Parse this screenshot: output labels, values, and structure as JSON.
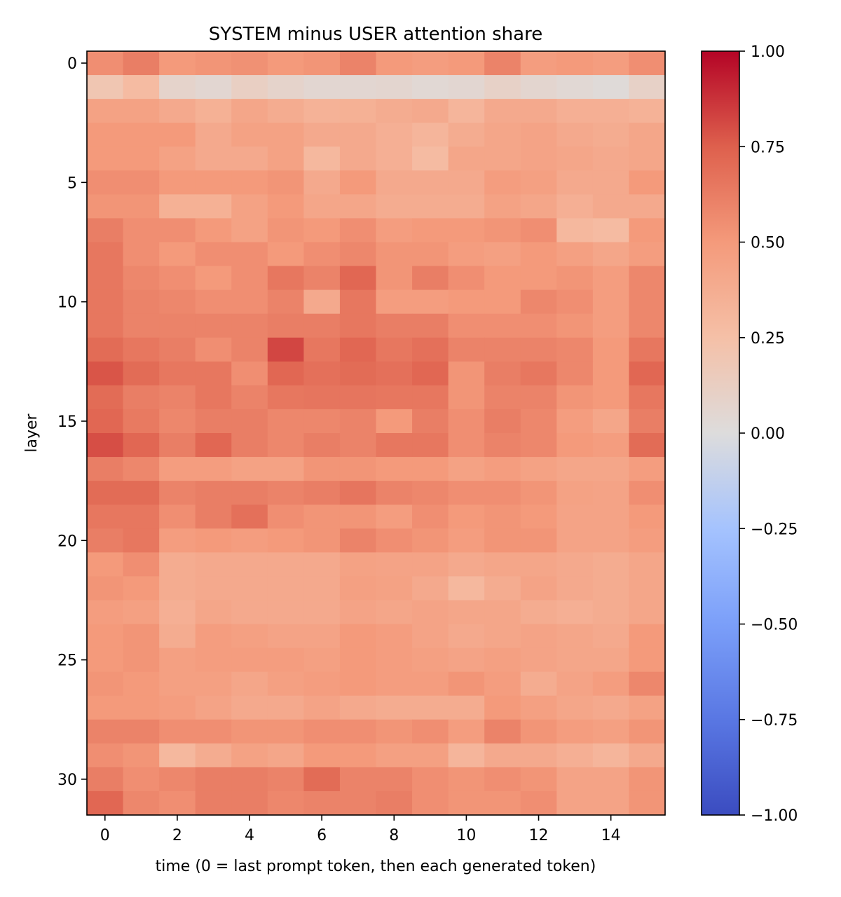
{
  "chart_data": {
    "type": "heatmap",
    "title": "SYSTEM minus USER attention share",
    "xlabel": "time (0 = last prompt token, then each generated token)",
    "ylabel": "layer",
    "x_ticks": [
      0,
      2,
      4,
      6,
      8,
      10,
      12,
      14
    ],
    "y_ticks": [
      0,
      5,
      10,
      15,
      20,
      25,
      30
    ],
    "x_tick_labels": [
      "0",
      "2",
      "4",
      "6",
      "8",
      "10",
      "12",
      "14"
    ],
    "y_tick_labels": [
      "0",
      "5",
      "10",
      "15",
      "20",
      "25",
      "30"
    ],
    "colorbar": {
      "min": -1.0,
      "max": 1.0,
      "ticks": [
        1.0,
        0.75,
        0.5,
        0.25,
        0.0,
        -0.25,
        -0.5,
        -0.75,
        -1.0
      ],
      "tick_labels": [
        "1.00",
        "0.75",
        "0.50",
        "0.25",
        "0.00",
        "−0.25",
        "−0.50",
        "−0.75",
        "−1.00"
      ],
      "colormap": "coolwarm"
    },
    "n_cols": 16,
    "n_rows": 32,
    "values": [
      [
        0.55,
        0.62,
        0.5,
        0.52,
        0.54,
        0.5,
        0.52,
        0.6,
        0.5,
        0.48,
        0.5,
        0.6,
        0.48,
        0.5,
        0.48,
        0.55
      ],
      [
        0.2,
        0.28,
        0.08,
        0.05,
        0.12,
        0.08,
        0.05,
        0.05,
        0.06,
        0.04,
        0.05,
        0.1,
        0.06,
        0.04,
        0.02,
        0.1
      ],
      [
        0.45,
        0.45,
        0.4,
        0.35,
        0.42,
        0.38,
        0.34,
        0.35,
        0.38,
        0.4,
        0.32,
        0.4,
        0.4,
        0.36,
        0.36,
        0.34
      ],
      [
        0.5,
        0.5,
        0.5,
        0.4,
        0.45,
        0.45,
        0.4,
        0.4,
        0.36,
        0.32,
        0.38,
        0.42,
        0.44,
        0.4,
        0.38,
        0.42
      ],
      [
        0.5,
        0.5,
        0.45,
        0.4,
        0.4,
        0.45,
        0.3,
        0.4,
        0.36,
        0.28,
        0.42,
        0.42,
        0.44,
        0.42,
        0.4,
        0.42
      ],
      [
        0.55,
        0.55,
        0.5,
        0.5,
        0.5,
        0.52,
        0.4,
        0.5,
        0.4,
        0.4,
        0.4,
        0.48,
        0.46,
        0.4,
        0.4,
        0.5
      ],
      [
        0.52,
        0.52,
        0.35,
        0.35,
        0.45,
        0.5,
        0.42,
        0.42,
        0.38,
        0.38,
        0.38,
        0.45,
        0.42,
        0.36,
        0.4,
        0.4
      ],
      [
        0.62,
        0.55,
        0.55,
        0.5,
        0.45,
        0.52,
        0.5,
        0.55,
        0.48,
        0.5,
        0.5,
        0.52,
        0.55,
        0.3,
        0.28,
        0.5
      ],
      [
        0.65,
        0.55,
        0.5,
        0.55,
        0.55,
        0.5,
        0.55,
        0.58,
        0.52,
        0.52,
        0.48,
        0.46,
        0.5,
        0.46,
        0.42,
        0.48
      ],
      [
        0.65,
        0.58,
        0.55,
        0.5,
        0.55,
        0.65,
        0.6,
        0.72,
        0.52,
        0.62,
        0.55,
        0.5,
        0.5,
        0.52,
        0.48,
        0.58
      ],
      [
        0.65,
        0.6,
        0.58,
        0.55,
        0.55,
        0.6,
        0.4,
        0.65,
        0.48,
        0.48,
        0.5,
        0.5,
        0.58,
        0.55,
        0.48,
        0.58
      ],
      [
        0.65,
        0.6,
        0.6,
        0.6,
        0.6,
        0.62,
        0.62,
        0.65,
        0.62,
        0.62,
        0.55,
        0.55,
        0.55,
        0.52,
        0.48,
        0.58
      ],
      [
        0.7,
        0.65,
        0.62,
        0.55,
        0.6,
        0.82,
        0.65,
        0.72,
        0.65,
        0.68,
        0.6,
        0.6,
        0.6,
        0.58,
        0.5,
        0.65
      ],
      [
        0.78,
        0.7,
        0.65,
        0.65,
        0.55,
        0.72,
        0.68,
        0.7,
        0.68,
        0.72,
        0.52,
        0.62,
        0.65,
        0.58,
        0.5,
        0.72
      ],
      [
        0.7,
        0.62,
        0.6,
        0.65,
        0.6,
        0.65,
        0.66,
        0.66,
        0.65,
        0.65,
        0.52,
        0.6,
        0.6,
        0.52,
        0.5,
        0.65
      ],
      [
        0.72,
        0.64,
        0.58,
        0.62,
        0.62,
        0.58,
        0.58,
        0.6,
        0.5,
        0.62,
        0.55,
        0.62,
        0.58,
        0.48,
        0.42,
        0.62
      ],
      [
        0.8,
        0.72,
        0.62,
        0.72,
        0.62,
        0.58,
        0.62,
        0.6,
        0.65,
        0.65,
        0.55,
        0.6,
        0.58,
        0.5,
        0.48,
        0.7
      ],
      [
        0.62,
        0.58,
        0.48,
        0.48,
        0.45,
        0.45,
        0.52,
        0.52,
        0.5,
        0.5,
        0.45,
        0.48,
        0.45,
        0.42,
        0.42,
        0.48
      ],
      [
        0.7,
        0.7,
        0.6,
        0.62,
        0.62,
        0.6,
        0.62,
        0.66,
        0.6,
        0.58,
        0.55,
        0.55,
        0.52,
        0.45,
        0.44,
        0.55
      ],
      [
        0.65,
        0.65,
        0.55,
        0.62,
        0.68,
        0.55,
        0.52,
        0.52,
        0.48,
        0.55,
        0.5,
        0.52,
        0.5,
        0.44,
        0.44,
        0.5
      ],
      [
        0.62,
        0.65,
        0.48,
        0.5,
        0.48,
        0.5,
        0.52,
        0.6,
        0.55,
        0.52,
        0.48,
        0.52,
        0.52,
        0.44,
        0.44,
        0.48
      ],
      [
        0.5,
        0.55,
        0.38,
        0.4,
        0.4,
        0.4,
        0.4,
        0.45,
        0.44,
        0.44,
        0.4,
        0.42,
        0.42,
        0.4,
        0.38,
        0.42
      ],
      [
        0.52,
        0.5,
        0.38,
        0.4,
        0.4,
        0.4,
        0.4,
        0.46,
        0.45,
        0.4,
        0.3,
        0.38,
        0.44,
        0.4,
        0.38,
        0.42
      ],
      [
        0.48,
        0.46,
        0.36,
        0.42,
        0.4,
        0.4,
        0.4,
        0.44,
        0.42,
        0.44,
        0.42,
        0.42,
        0.38,
        0.36,
        0.38,
        0.42
      ],
      [
        0.5,
        0.52,
        0.38,
        0.48,
        0.46,
        0.44,
        0.44,
        0.5,
        0.48,
        0.44,
        0.4,
        0.42,
        0.44,
        0.42,
        0.4,
        0.5
      ],
      [
        0.5,
        0.52,
        0.46,
        0.48,
        0.48,
        0.48,
        0.46,
        0.5,
        0.48,
        0.46,
        0.44,
        0.46,
        0.44,
        0.42,
        0.42,
        0.5
      ],
      [
        0.52,
        0.5,
        0.46,
        0.46,
        0.42,
        0.46,
        0.48,
        0.5,
        0.48,
        0.48,
        0.52,
        0.48,
        0.38,
        0.44,
        0.48,
        0.58
      ],
      [
        0.5,
        0.5,
        0.48,
        0.44,
        0.4,
        0.4,
        0.44,
        0.4,
        0.38,
        0.38,
        0.38,
        0.5,
        0.46,
        0.42,
        0.4,
        0.45
      ],
      [
        0.6,
        0.6,
        0.55,
        0.55,
        0.52,
        0.52,
        0.55,
        0.55,
        0.52,
        0.55,
        0.48,
        0.6,
        0.52,
        0.48,
        0.46,
        0.52
      ],
      [
        0.55,
        0.52,
        0.3,
        0.38,
        0.45,
        0.42,
        0.5,
        0.5,
        0.46,
        0.46,
        0.32,
        0.4,
        0.4,
        0.36,
        0.32,
        0.4
      ],
      [
        0.62,
        0.55,
        0.58,
        0.62,
        0.62,
        0.6,
        0.7,
        0.6,
        0.6,
        0.55,
        0.52,
        0.55,
        0.52,
        0.44,
        0.44,
        0.52
      ],
      [
        0.72,
        0.58,
        0.55,
        0.62,
        0.62,
        0.58,
        0.6,
        0.6,
        0.62,
        0.55,
        0.52,
        0.52,
        0.55,
        0.44,
        0.44,
        0.52
      ]
    ]
  }
}
